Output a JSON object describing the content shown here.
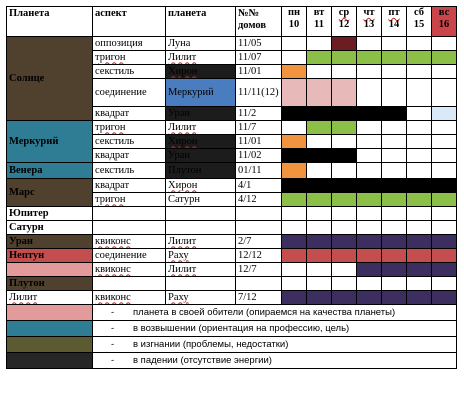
{
  "colors": {
    "sun": "#50402e",
    "mercury": "#2e7d95",
    "venus": "#2e7d95",
    "mars": "#50402e",
    "uranus": "#50402e",
    "neptune": "#c44d4d",
    "pluto": "#50402e",
    "lilit": "#ffffff",
    "sun_mercury_blue": "#4a7cc0",
    "dark": "#1c1c1c",
    "green": "#8cbf47",
    "orange": "#f29340",
    "pink": "#e8b9b9",
    "maroon": "#6b1d22",
    "black": "#000000",
    "purple": "#3c2f5f",
    "red": "#c44d4d",
    "light_blue": "#d9e9f8",
    "legend_pink": "#e29a9a",
    "legend_teal": "#2e7d95",
    "legend_olive": "#5c5a31",
    "legend_dark": "#262626",
    "sunday_header": "#c9454a"
  },
  "header": {
    "planet": "Планета",
    "aspect": "аспект",
    "planet2": "планета",
    "houses": "№№ домов",
    "days": [
      {
        "name": "пн",
        "num": "10"
      },
      {
        "name": "вт",
        "num": "11"
      },
      {
        "name": "ср",
        "num": "12"
      },
      {
        "name": "чт",
        "num": "13"
      },
      {
        "name": "пт",
        "num": "14"
      },
      {
        "name": "сб",
        "num": "15"
      },
      {
        "name": "вс",
        "num": "16"
      }
    ]
  },
  "planets": {
    "sun": "Солнце",
    "mercury": "Меркурий",
    "venus": "Венера",
    "mars": "Марс",
    "jupiter": "Юпитер",
    "saturn": "Сатурн",
    "uranus": "Уран",
    "neptune": "Нептун",
    "pluto": "Плутон",
    "lilit": "Лилит"
  },
  "rows": [
    {
      "aspect": "оппозиция",
      "planet2": "Луна",
      "houses": "11/05"
    },
    {
      "aspect": "тригон",
      "planet2": "Лилит",
      "houses": "11/07"
    },
    {
      "aspect": "секстиль",
      "planet2": "Хирон",
      "houses": "11/01"
    },
    {
      "aspect": "соединение",
      "planet2": "Меркурий",
      "houses": "11/11(12)"
    },
    {
      "aspect": "квадрат",
      "planet2": "Уран",
      "houses": "11/2"
    },
    {
      "aspect": "тригон",
      "planet2": "Лилит",
      "houses": "11/7"
    },
    {
      "aspect": "секстиль",
      "planet2": "Хирон",
      "houses": "11/01"
    },
    {
      "aspect": "квадрат",
      "planet2": "Уран",
      "houses": "11/02"
    },
    {
      "aspect": "секстиль",
      "planet2": "Плутон",
      "houses": "01/11"
    },
    {
      "aspect": "квадрат",
      "planet2": "Хирон",
      "houses": "4/1"
    },
    {
      "aspect": "тригон",
      "planet2": "Сатурн",
      "houses": "4/12"
    },
    {
      "aspect": "квиконс",
      "planet2": "Лилит",
      "houses": "2/7"
    },
    {
      "aspect": "соединение",
      "planet2": "Раху",
      "houses": "12/12"
    },
    {
      "aspect": "квиконс",
      "planet2": "Лилит",
      "houses": "12/7"
    },
    {
      "aspect": "квиконс",
      "planet2": "Раху",
      "houses": "7/12"
    }
  ],
  "legend": [
    {
      "dash": "-",
      "text": "планета в своей обители (опираемся на качества планеты)"
    },
    {
      "dash": "-",
      "text": "в возвышении (ориентация на профессию, цель)"
    },
    {
      "dash": "-",
      "text": "в изгнании (проблемы, недостатки)"
    },
    {
      "dash": "-",
      "text": "в падении (отсутствие энергии)"
    }
  ]
}
